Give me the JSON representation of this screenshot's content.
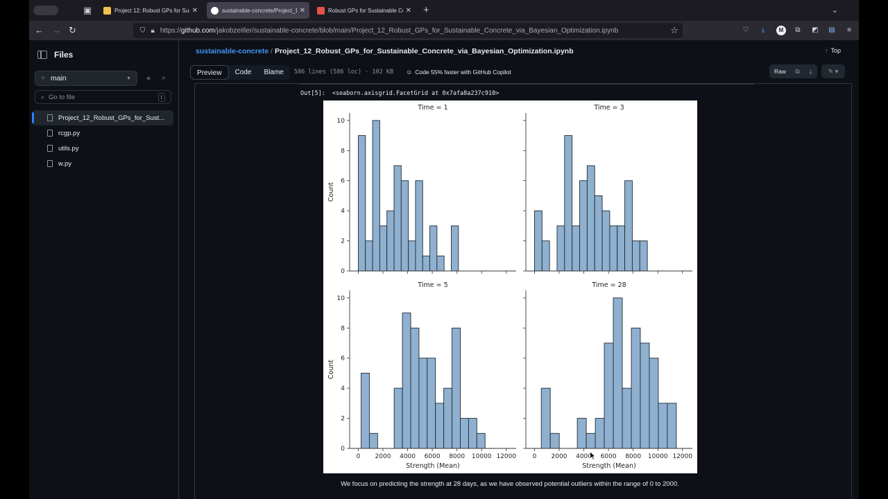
{
  "browser": {
    "tabs": [
      {
        "title": "Project 12: Robust GPs for Sust",
        "active": false,
        "favicon_color": "#f2c14e"
      },
      {
        "title": "sustainable-concrete/Project_12",
        "active": true,
        "favicon_color": "#ffffff"
      },
      {
        "title": "Robust GPs for Sustainable Con",
        "active": false,
        "favicon_color": "#e5534b"
      }
    ],
    "url_prefix": "https://",
    "url_host": "github.com",
    "url_path": "/jakobzeitler/sustainable-concrete/blob/main/Project_12_Robust_GPs_for_Sustainable_Concrete_via_Bayesian_Optimization.ipynb",
    "profile_initial": "M"
  },
  "sidebar": {
    "title": "Files",
    "branch": "main",
    "search_placeholder": "Go to file",
    "search_shortcut": "t",
    "files": [
      {
        "name": "Project_12_Robust_GPs_for_Sust...",
        "active": true
      },
      {
        "name": "rcgp.py",
        "active": false
      },
      {
        "name": "utils.py",
        "active": false
      },
      {
        "name": "w.py",
        "active": false
      }
    ]
  },
  "header": {
    "repo": "sustainable-concrete",
    "separator": "/",
    "filename": "Project_12_Robust_GPs_for_Sustainable_Concrete_via_Bayesian_Optimization.ipynb",
    "top_label": "Top"
  },
  "filebar": {
    "tabs": [
      "Preview",
      "Code",
      "Blame"
    ],
    "meta": "586 lines (586 loc) · 102 KB",
    "copilot": "Code 55% faster with GitHub Copilot",
    "raw_label": "Raw"
  },
  "notebook": {
    "out_prompt": "Out[5]:",
    "out_repr": "<seaborn.axisgrid.FacetGrid at 0x7afa8a237c910>",
    "caption": "We focus on predicting the strength at 28 days, as we have observed potential outliers within the range of 0 to 2000."
  },
  "colors": {
    "bar_fill": "#8fb0cf",
    "bar_edge": "#1f2a36",
    "accent": "#2f81f7",
    "link": "#4493f8"
  },
  "chart_data": {
    "type": "bar",
    "subtype": "histogram-facetgrid",
    "xlabel": "Strength (Mean)",
    "ylabel": "Count",
    "xlim": [
      -700,
      12800
    ],
    "ylim": [
      0,
      10.5
    ],
    "xticks": [
      0,
      2000,
      4000,
      6000,
      8000,
      10000,
      12000
    ],
    "yticks": [
      0,
      2,
      4,
      6,
      8,
      10
    ],
    "grid": false,
    "panels": [
      {
        "title": "Time = 1",
        "bins": [
          {
            "x0": 0,
            "x1": 580,
            "count": 9
          },
          {
            "x0": 580,
            "x1": 1160,
            "count": 2
          },
          {
            "x0": 1160,
            "x1": 1740,
            "count": 10
          },
          {
            "x0": 1740,
            "x1": 2320,
            "count": 3
          },
          {
            "x0": 2320,
            "x1": 2900,
            "count": 4
          },
          {
            "x0": 2900,
            "x1": 3480,
            "count": 7
          },
          {
            "x0": 3480,
            "x1": 4060,
            "count": 6
          },
          {
            "x0": 4060,
            "x1": 4640,
            "count": 2
          },
          {
            "x0": 4640,
            "x1": 5220,
            "count": 6
          },
          {
            "x0": 5220,
            "x1": 5800,
            "count": 1
          },
          {
            "x0": 5800,
            "x1": 6380,
            "count": 3
          },
          {
            "x0": 6380,
            "x1": 6960,
            "count": 1
          },
          {
            "x0": 7540,
            "x1": 8120,
            "count": 3
          }
        ]
      },
      {
        "title": "Time = 3",
        "bins": [
          {
            "x0": 0,
            "x1": 610,
            "count": 4
          },
          {
            "x0": 610,
            "x1": 1220,
            "count": 2
          },
          {
            "x0": 1830,
            "x1": 2440,
            "count": 3
          },
          {
            "x0": 2440,
            "x1": 3050,
            "count": 9
          },
          {
            "x0": 3050,
            "x1": 3660,
            "count": 3
          },
          {
            "x0": 3660,
            "x1": 4270,
            "count": 6
          },
          {
            "x0": 4270,
            "x1": 4880,
            "count": 7
          },
          {
            "x0": 4880,
            "x1": 5490,
            "count": 5
          },
          {
            "x0": 5490,
            "x1": 6100,
            "count": 4
          },
          {
            "x0": 6100,
            "x1": 6710,
            "count": 3
          },
          {
            "x0": 6710,
            "x1": 7320,
            "count": 3
          },
          {
            "x0": 7320,
            "x1": 7930,
            "count": 6
          },
          {
            "x0": 7930,
            "x1": 8540,
            "count": 2
          },
          {
            "x0": 8540,
            "x1": 9150,
            "count": 2
          }
        ]
      },
      {
        "title": "Time = 5",
        "bins": [
          {
            "x0": 230,
            "x1": 900,
            "count": 5
          },
          {
            "x0": 900,
            "x1": 1570,
            "count": 1
          },
          {
            "x0": 2910,
            "x1": 3580,
            "count": 4
          },
          {
            "x0": 3580,
            "x1": 4250,
            "count": 9
          },
          {
            "x0": 4250,
            "x1": 4920,
            "count": 8
          },
          {
            "x0": 4920,
            "x1": 5590,
            "count": 6
          },
          {
            "x0": 5590,
            "x1": 6260,
            "count": 6
          },
          {
            "x0": 6260,
            "x1": 6930,
            "count": 3
          },
          {
            "x0": 6930,
            "x1": 7600,
            "count": 4
          },
          {
            "x0": 7600,
            "x1": 8270,
            "count": 8
          },
          {
            "x0": 8270,
            "x1": 8940,
            "count": 2
          },
          {
            "x0": 8940,
            "x1": 9610,
            "count": 2
          },
          {
            "x0": 9610,
            "x1": 10280,
            "count": 1
          }
        ]
      },
      {
        "title": "Time = 28",
        "bins": [
          {
            "x0": 550,
            "x1": 1280,
            "count": 4
          },
          {
            "x0": 1280,
            "x1": 2010,
            "count": 1
          },
          {
            "x0": 3470,
            "x1": 4200,
            "count": 2
          },
          {
            "x0": 4200,
            "x1": 4930,
            "count": 1
          },
          {
            "x0": 4930,
            "x1": 5660,
            "count": 2
          },
          {
            "x0": 5660,
            "x1": 6390,
            "count": 7
          },
          {
            "x0": 6390,
            "x1": 7120,
            "count": 10
          },
          {
            "x0": 7120,
            "x1": 7850,
            "count": 4
          },
          {
            "x0": 7850,
            "x1": 8580,
            "count": 8
          },
          {
            "x0": 8580,
            "x1": 9310,
            "count": 7
          },
          {
            "x0": 9310,
            "x1": 10040,
            "count": 6
          },
          {
            "x0": 10040,
            "x1": 10770,
            "count": 3
          },
          {
            "x0": 10770,
            "x1": 11500,
            "count": 3
          }
        ]
      }
    ]
  }
}
